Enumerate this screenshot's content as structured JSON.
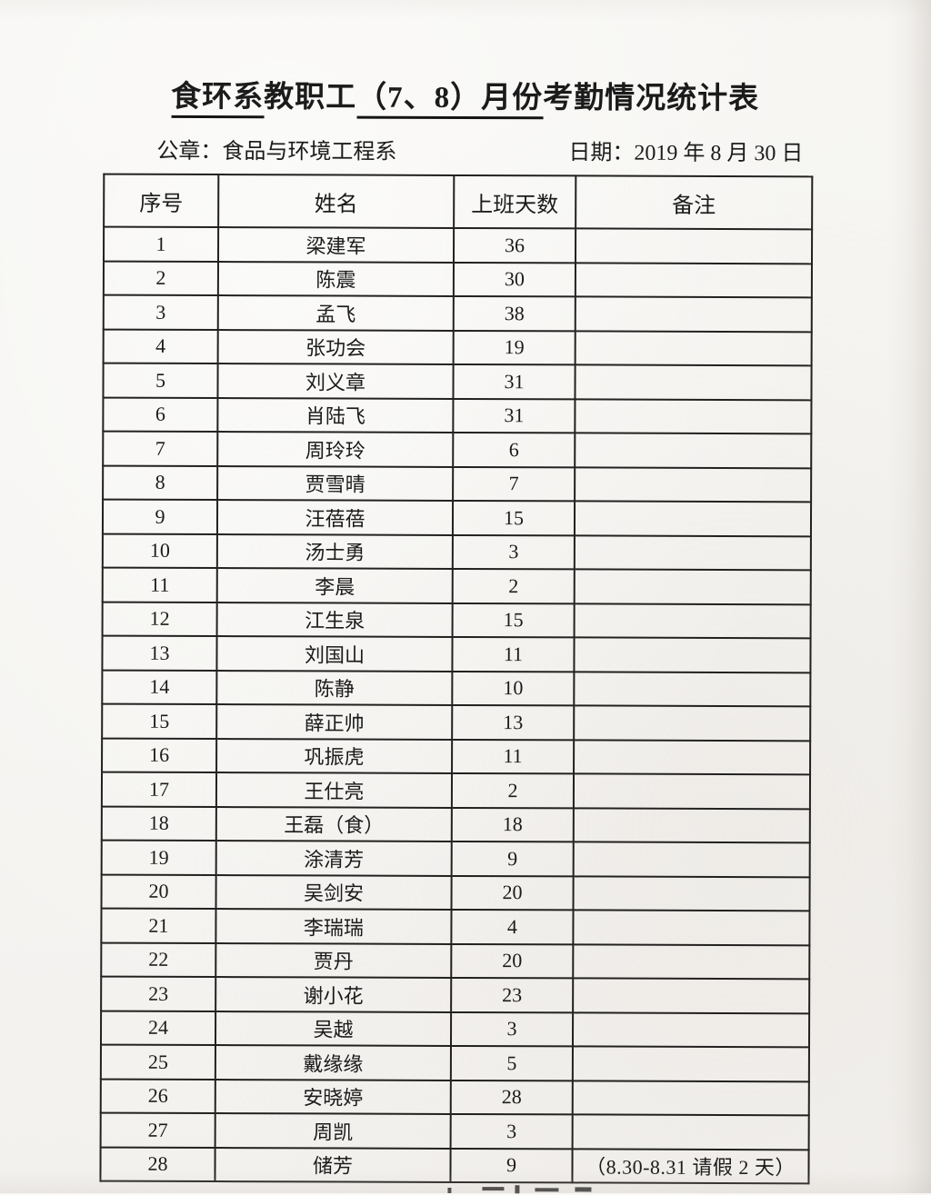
{
  "document": {
    "title": {
      "dept": "食环系",
      "middle": "教职工",
      "months": "（7、8）月份",
      "suffix": "考勤情况统计表"
    },
    "seal_label": "公章：食品与环境工程系",
    "date_label": "日期：2019 年 8 月 30 日"
  },
  "table": {
    "headers": [
      "序号",
      "姓名",
      "上班天数",
      "备注"
    ],
    "rows": [
      [
        "1",
        "梁建军",
        "36",
        ""
      ],
      [
        "2",
        "陈震",
        "30",
        ""
      ],
      [
        "3",
        "孟飞",
        "38",
        ""
      ],
      [
        "4",
        "张功会",
        "19",
        ""
      ],
      [
        "5",
        "刘义章",
        "31",
        ""
      ],
      [
        "6",
        "肖陆飞",
        "31",
        ""
      ],
      [
        "7",
        "周玲玲",
        "6",
        ""
      ],
      [
        "8",
        "贾雪晴",
        "7",
        ""
      ],
      [
        "9",
        "汪蓓蓓",
        "15",
        ""
      ],
      [
        "10",
        "汤士勇",
        "3",
        ""
      ],
      [
        "11",
        "李晨",
        "2",
        ""
      ],
      [
        "12",
        "江生泉",
        "15",
        ""
      ],
      [
        "13",
        "刘国山",
        "11",
        ""
      ],
      [
        "14",
        "陈静",
        "10",
        ""
      ],
      [
        "15",
        "薛正帅",
        "13",
        ""
      ],
      [
        "16",
        "巩振虎",
        "11",
        ""
      ],
      [
        "17",
        "王仕亮",
        "2",
        ""
      ],
      [
        "18",
        "王磊（食）",
        "18",
        ""
      ],
      [
        "19",
        "涂清芳",
        "9",
        ""
      ],
      [
        "20",
        "吴剑安",
        "20",
        ""
      ],
      [
        "21",
        "李瑞瑞",
        "4",
        ""
      ],
      [
        "22",
        "贾丹",
        "20",
        ""
      ],
      [
        "23",
        "谢小花",
        "23",
        ""
      ],
      [
        "24",
        "吴越",
        "3",
        ""
      ],
      [
        "25",
        "戴缘缘",
        "5",
        ""
      ],
      [
        "26",
        "安晓婷",
        "28",
        ""
      ],
      [
        "27",
        "周凯",
        "3",
        ""
      ],
      [
        "28",
        "储芳",
        "9",
        "（8.30-8.31 请假 2 天）"
      ]
    ]
  }
}
